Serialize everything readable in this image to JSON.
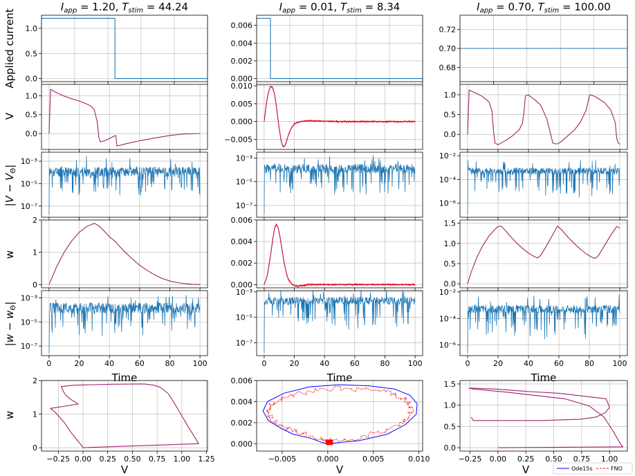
{
  "columns": [
    {
      "title": "$I_{app} = 1.20, T_{stim} = 44.24$",
      "title_parts": {
        "i": "I",
        "isub": "app",
        "ival": " = 1.20, ",
        "t": "T",
        "tsub": "stim",
        "tval": " = 44.24"
      }
    },
    {
      "title": "$I_{app} = 0.01, T_{stim} = 8.34$",
      "title_parts": {
        "i": "I",
        "isub": "app",
        "ival": " = 0.01, ",
        "t": "T",
        "tsub": "stim",
        "tval": " = 8.34"
      }
    },
    {
      "title": "$I_{app} = 0.70, T_{stim} = 100.00$",
      "title_parts": {
        "i": "I",
        "isub": "app",
        "ival": " = 0.70, ",
        "t": "T",
        "tsub": "stim",
        "tval": " = 100.00"
      }
    }
  ],
  "row_labels": {
    "current": "Applied current",
    "v": "V",
    "verr": {
      "open": "|",
      "sym": "V",
      "minus": " − ",
      "sym2": "V",
      "sub": "Θ",
      "close": "|"
    },
    "w": "w",
    "werr": {
      "open": "|",
      "sym": "w",
      "minus": " − ",
      "sym2": "w",
      "sub": "Θ",
      "close": "|"
    },
    "phase": "w"
  },
  "xlabels": {
    "time": "Time",
    "phase": "V"
  },
  "legend": {
    "ode": "Ode15s",
    "fno": "FNO"
  },
  "colors": {
    "ode": "#0000ff",
    "fno": "#ff0000",
    "overlap": "#a0206a",
    "err": "#1f77b4",
    "current": "#1f77b4",
    "grid": "#b0b0b0"
  },
  "chart_data": [
    {
      "panel": "current-1",
      "type": "line",
      "x": [
        0,
        44.24,
        44.24,
        100
      ],
      "y": [
        1.2,
        1.2,
        0,
        0
      ],
      "xlim": [
        0,
        100
      ],
      "ylim": [
        -0.06,
        1.26
      ],
      "yticks": [
        "0.0",
        "0.5",
        "1.0"
      ],
      "ytick_values": [
        0,
        0.5,
        1.0
      ],
      "grid": true
    },
    {
      "panel": "current-2",
      "type": "line",
      "x": [
        0,
        8.34,
        8.34,
        100
      ],
      "y": [
        0.0068,
        0.0068,
        0,
        0
      ],
      "xlim": [
        0,
        100
      ],
      "ylim": [
        -0.00034,
        0.00714
      ],
      "yticks": [
        "0.000",
        "0.002",
        "0.004",
        "0.006"
      ],
      "ytick_values": [
        0,
        0.002,
        0.004,
        0.006
      ],
      "grid": true
    },
    {
      "panel": "current-3",
      "type": "line",
      "x": [
        0,
        100
      ],
      "y": [
        0.7,
        0.7
      ],
      "xlim": [
        0,
        100
      ],
      "ylim": [
        0.665,
        0.735
      ],
      "yticks": [
        "0.68",
        "0.70",
        "0.72"
      ],
      "ytick_values": [
        0.68,
        0.7,
        0.72
      ],
      "grid": true
    },
    {
      "panel": "v-1",
      "type": "line",
      "x": [
        0,
        1,
        2,
        5,
        10,
        15,
        20,
        25,
        28,
        30,
        32,
        33,
        34,
        36,
        38,
        40,
        42,
        44.24,
        45,
        50,
        60,
        70,
        80,
        90,
        100
      ],
      "y": [
        0,
        1.17,
        1.15,
        1.08,
        0.99,
        0.92,
        0.86,
        0.78,
        0.72,
        0.62,
        0.3,
        -0.1,
        -0.22,
        -0.2,
        -0.17,
        -0.13,
        -0.09,
        -0.05,
        -0.33,
        -0.28,
        -0.19,
        -0.12,
        -0.05,
        -0.01,
        0.0
      ],
      "xlim": [
        -5,
        105
      ],
      "ylim": [
        -0.42,
        1.3
      ],
      "yticks": [
        "0.0",
        "0.5",
        "1.0"
      ],
      "ytick_values": [
        0,
        0.5,
        1.0
      ],
      "grid": true
    },
    {
      "panel": "v-2",
      "type": "line",
      "x": [
        0,
        1,
        2,
        3,
        4,
        5,
        6,
        7,
        8,
        9,
        10,
        11,
        12,
        13,
        14,
        15,
        16,
        18,
        20,
        25,
        30,
        40,
        50,
        60,
        70,
        80,
        90,
        100
      ],
      "y": [
        0,
        0.0035,
        0.0065,
        0.0085,
        0.0097,
        0.0098,
        0.009,
        0.0073,
        0.0045,
        0.0012,
        -0.002,
        -0.0048,
        -0.0066,
        -0.0071,
        -0.0065,
        -0.0052,
        -0.0038,
        -0.0018,
        -0.0006,
        0.0001,
        0.0002,
        0.0001,
        0.0,
        0.0,
        0.0,
        0.0,
        0.0,
        0.0
      ],
      "xlim": [
        -5,
        105
      ],
      "ylim": [
        -0.0078,
        0.0104
      ],
      "yticks": [
        "−0.005",
        "0.000",
        "0.005",
        "0.010"
      ],
      "ytick_values": [
        -0.005,
        0,
        0.005,
        0.01
      ],
      "grid": true,
      "series": [
        {
          "name": "Ode15s"
        },
        {
          "name": "FNO",
          "noisy": true
        }
      ]
    },
    {
      "panel": "v-3",
      "type": "line",
      "x": [
        0,
        1,
        2,
        6,
        10,
        14,
        16,
        17,
        18,
        20,
        22,
        26,
        30,
        34,
        36,
        37,
        38,
        40,
        41,
        44,
        48,
        52,
        56,
        58,
        59,
        60,
        62,
        63,
        66,
        70,
        74,
        78,
        80,
        81,
        82,
        84,
        86,
        90,
        94,
        97,
        98,
        99,
        100
      ],
      "y": [
        0,
        1.12,
        1.1,
        1.03,
        0.95,
        0.82,
        0.6,
        0.1,
        -0.22,
        -0.26,
        -0.22,
        -0.13,
        -0.02,
        0.12,
        0.28,
        0.55,
        0.97,
        1.0,
        0.96,
        0.88,
        0.74,
        0.4,
        -0.22,
        -0.24,
        -0.24,
        -0.22,
        -0.17,
        -0.13,
        -0.03,
        0.1,
        0.3,
        0.62,
        0.97,
        1.0,
        0.98,
        0.95,
        0.9,
        0.8,
        0.62,
        0.3,
        -0.1,
        -0.22,
        -0.25
      ],
      "xlim": [
        -5,
        105
      ],
      "ylim": [
        -0.38,
        1.26
      ],
      "yticks": [
        "0.0",
        "0.5",
        "1.0"
      ],
      "ytick_values": [
        0,
        0.5,
        1.0
      ],
      "grid": true
    },
    {
      "panel": "verr-1",
      "type": "line",
      "scale": "log",
      "seed": 11,
      "xlim": [
        -5,
        105
      ],
      "ylim_exp": [
        -8.0,
        -2.2
      ],
      "level": [
        -4.4,
        -3.5
      ],
      "yticks": [
        "10⁻³",
        "10⁻⁵",
        "10⁻⁷"
      ],
      "ytick_exps": [
        -3,
        -5,
        -7
      ],
      "grid": true
    },
    {
      "panel": "verr-2",
      "type": "line",
      "scale": "log",
      "seed": 23,
      "xlim": [
        -5,
        105
      ],
      "ylim_exp": [
        -8.0,
        -2.5
      ],
      "level": [
        -4.3,
        -3.5
      ],
      "yticks": [
        "10⁻³",
        "10⁻⁵",
        "10⁻⁷"
      ],
      "ytick_exps": [
        -3,
        -5,
        -7
      ],
      "grid": true
    },
    {
      "panel": "verr-3",
      "type": "line",
      "scale": "log",
      "seed": 37,
      "xlim": [
        -5,
        105
      ],
      "ylim_exp": [
        -7.2,
        -1.7
      ],
      "level": [
        -3.6,
        -3.0
      ],
      "yticks": [
        "10⁻²",
        "10⁻⁴",
        "10⁻⁶"
      ],
      "ytick_exps": [
        -2,
        -4,
        -6
      ],
      "grid": true
    },
    {
      "panel": "w-1",
      "type": "line",
      "x": [
        0,
        5,
        10,
        15,
        20,
        25,
        30,
        33,
        36,
        40,
        44.24,
        46,
        50,
        55,
        60,
        65,
        70,
        75,
        80,
        85,
        90,
        95,
        100
      ],
      "y": [
        0,
        0.55,
        1.0,
        1.35,
        1.62,
        1.8,
        1.9,
        1.82,
        1.68,
        1.48,
        1.32,
        1.22,
        1.02,
        0.8,
        0.6,
        0.44,
        0.3,
        0.19,
        0.11,
        0.06,
        0.03,
        0.01,
        0.0
      ],
      "xlim": [
        -5,
        105
      ],
      "ylim": [
        -0.1,
        2.0
      ],
      "yticks": [
        "0",
        "1",
        "2"
      ],
      "ytick_values": [
        0,
        1,
        2
      ],
      "grid": true
    },
    {
      "panel": "w-2",
      "type": "line",
      "x": [
        0,
        2,
        4,
        6,
        7,
        8,
        9,
        10,
        11,
        12,
        13,
        14,
        15,
        16,
        18,
        20,
        22,
        25,
        30,
        40,
        50,
        60,
        70,
        80,
        90,
        100
      ],
      "y": [
        0,
        0.0008,
        0.0025,
        0.0045,
        0.0053,
        0.0056,
        0.0054,
        0.0048,
        0.004,
        0.0031,
        0.0022,
        0.0015,
        0.0009,
        0.0005,
        0.0001,
        -0.0001,
        -0.00015,
        -0.0001,
        0.0,
        0.0,
        0.0,
        0.0,
        0.0,
        0.0,
        0.0,
        0.0
      ],
      "xlim": [
        -5,
        105
      ],
      "ylim": [
        -0.0003,
        0.006
      ],
      "yticks": [
        "0.000",
        "0.002",
        "0.004",
        "0.006"
      ],
      "ytick_values": [
        0,
        0.002,
        0.004,
        0.006
      ],
      "grid": true,
      "series": [
        {
          "name": "Ode15s"
        },
        {
          "name": "FNO",
          "noisy": true
        }
      ]
    },
    {
      "panel": "w-3",
      "type": "line",
      "x": [
        0,
        2,
        6,
        10,
        14,
        18,
        20,
        22,
        24,
        28,
        32,
        36,
        40,
        44,
        46,
        48,
        52,
        56,
        59,
        62,
        66,
        70,
        74,
        78,
        82,
        84,
        86,
        90,
        94,
        98,
        100
      ],
      "y": [
        0,
        0.25,
        0.65,
        0.95,
        1.18,
        1.35,
        1.42,
        1.43,
        1.35,
        1.18,
        1.02,
        0.88,
        0.76,
        0.67,
        0.64,
        0.7,
        0.95,
        1.22,
        1.43,
        1.33,
        1.15,
        1.0,
        0.86,
        0.74,
        0.65,
        0.63,
        0.7,
        0.95,
        1.2,
        1.42,
        1.38
      ],
      "xlim": [
        -5,
        105
      ],
      "ylim": [
        -0.1,
        1.58
      ],
      "yticks": [
        "0.0",
        "0.5",
        "1.0",
        "1.5"
      ],
      "ytick_values": [
        0,
        0.5,
        1.0,
        1.5
      ],
      "grid": true
    },
    {
      "panel": "werr-1",
      "type": "line",
      "scale": "log",
      "seed": 51,
      "xlim": [
        -5,
        105
      ],
      "ylim_exp": [
        -7.8,
        -2.4
      ],
      "level": [
        -4.3,
        -3.4
      ],
      "yticks": [
        "10⁻³",
        "10⁻⁵",
        "10⁻⁷"
      ],
      "ytick_exps": [
        -3,
        -5,
        -7
      ],
      "grid": true,
      "xticks": [
        "0",
        "20",
        "40",
        "60",
        "80",
        "100"
      ],
      "xtick_values": [
        0,
        20,
        40,
        60,
        80,
        100
      ]
    },
    {
      "panel": "werr-2",
      "type": "line",
      "scale": "log",
      "seed": 63,
      "xlim": [
        -5,
        105
      ],
      "ylim_exp": [
        -8.0,
        -2.9
      ],
      "level": [
        -4.0,
        -3.4
      ],
      "yticks": [
        "10⁻³",
        "10⁻⁵",
        "10⁻⁷"
      ],
      "ytick_exps": [
        -3,
        -5,
        -7
      ],
      "grid": true,
      "xticks": [
        "0",
        "20",
        "40",
        "60",
        "80",
        "100"
      ],
      "xtick_values": [
        0,
        20,
        40,
        60,
        80,
        100
      ]
    },
    {
      "panel": "werr-3",
      "type": "line",
      "scale": "log",
      "seed": 77,
      "xlim": [
        -5,
        105
      ],
      "ylim_exp": [
        -6.8,
        -1.9
      ],
      "level": [
        -3.6,
        -3.0
      ],
      "yticks": [
        "10⁻²",
        "10⁻⁴",
        "10⁻⁶"
      ],
      "ytick_exps": [
        -2,
        -4,
        -6
      ],
      "grid": true,
      "xticks": [
        "0",
        "20",
        "40",
        "60",
        "80",
        "100"
      ],
      "xtick_values": [
        0,
        20,
        40,
        60,
        80,
        100
      ]
    },
    {
      "panel": "phase-1",
      "type": "line",
      "x": [
        0,
        1.17,
        1.15,
        1.08,
        0.99,
        0.92,
        0.86,
        0.78,
        0.72,
        0.62,
        0.3,
        -0.1,
        -0.22,
        -0.2,
        -0.17,
        -0.13,
        -0.09,
        -0.05,
        -0.33,
        -0.28,
        -0.19,
        -0.12,
        -0.05,
        -0.01,
        0.0
      ],
      "y": [
        0,
        0.12,
        0.22,
        0.55,
        1.0,
        1.35,
        1.62,
        1.8,
        1.86,
        1.9,
        1.89,
        1.86,
        1.82,
        1.68,
        1.55,
        1.45,
        1.38,
        1.3,
        1.17,
        1.05,
        0.75,
        0.45,
        0.19,
        0.05,
        0.0
      ],
      "xlim": [
        -0.42,
        1.26
      ],
      "ylim": [
        -0.1,
        2.0
      ],
      "xticks": [
        "−0.25",
        "0.00",
        "0.25",
        "0.50",
        "0.75",
        "1.00",
        "1.25"
      ],
      "xtick_values": [
        -0.25,
        0,
        0.25,
        0.5,
        0.75,
        1.0,
        1.25
      ],
      "yticks": [
        "0",
        "1",
        "2"
      ],
      "ytick_values": [
        0,
        1,
        2
      ],
      "grid": true
    },
    {
      "panel": "phase-2",
      "type": "line",
      "x": [
        0,
        0.0035,
        0.0065,
        0.0085,
        0.0097,
        0.0098,
        0.009,
        0.0073,
        0.0045,
        0.0012,
        -0.002,
        -0.0048,
        -0.0066,
        -0.0071,
        -0.0065,
        -0.0052,
        -0.0038,
        -0.0018,
        -0.0006,
        0.0001
      ],
      "y": [
        0,
        0.0003,
        0.0009,
        0.0018,
        0.0028,
        0.0038,
        0.0046,
        0.0052,
        0.0055,
        0.0056,
        0.0054,
        0.0048,
        0.004,
        0.0031,
        0.0022,
        0.0015,
        0.0009,
        0.0005,
        0.0001,
        0.0
      ],
      "xlim": [
        -0.0078,
        0.0104
      ],
      "ylim": [
        -0.0007,
        0.006
      ],
      "xticks": [
        "−0.005",
        "0.000",
        "0.005",
        "0.010"
      ],
      "xtick_values": [
        -0.005,
        0,
        0.005,
        0.01
      ],
      "yticks": [
        "0.000",
        "0.002",
        "0.004",
        "0.006"
      ],
      "ytick_values": [
        0,
        0.002,
        0.004,
        0.006
      ],
      "grid": true,
      "series": [
        {
          "name": "Ode15s"
        },
        {
          "name": "FNO",
          "noisy": true
        }
      ]
    },
    {
      "panel": "phase-3",
      "type": "line",
      "x": [
        0,
        1.12,
        1.1,
        1.03,
        0.95,
        0.82,
        0.6,
        0.1,
        -0.22,
        -0.26,
        -0.22,
        -0.13,
        -0.02,
        0.12,
        0.28,
        0.55,
        0.97,
        1.0,
        0.96,
        0.88,
        0.74,
        0.4,
        -0.22,
        -0.24
      ],
      "y": [
        0,
        0.02,
        0.08,
        0.4,
        0.72,
        0.98,
        1.15,
        1.3,
        1.38,
        1.4,
        1.4,
        1.39,
        1.38,
        1.35,
        1.32,
        1.28,
        1.15,
        0.95,
        0.82,
        0.72,
        0.67,
        0.64,
        0.64,
        0.72
      ],
      "xlim": [
        -0.34,
        1.16
      ],
      "ylim": [
        -0.08,
        1.58
      ],
      "xticks": [
        "−0.25",
        "0.00",
        "0.25",
        "0.50",
        "0.75",
        "1.00"
      ],
      "xtick_values": [
        -0.25,
        0,
        0.25,
        0.5,
        0.75,
        1.0
      ],
      "yticks": [
        "0.0",
        "0.5",
        "1.0",
        "1.5"
      ],
      "ytick_values": [
        0,
        0.5,
        1.0,
        1.5
      ],
      "grid": true
    }
  ]
}
